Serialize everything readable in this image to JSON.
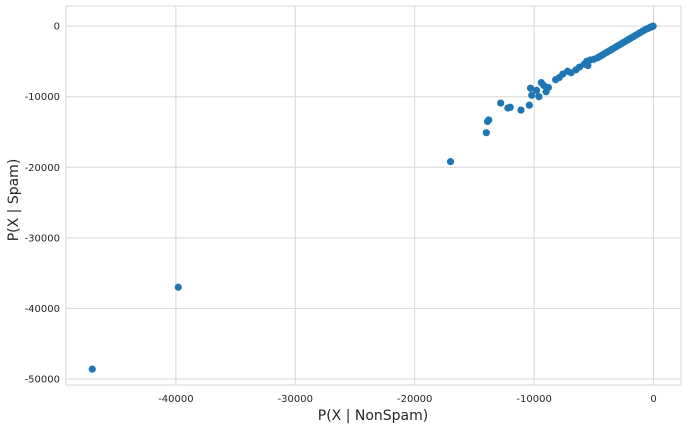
{
  "chart_data": {
    "type": "scatter",
    "title": "",
    "xlabel": "P(X | NonSpam)",
    "ylabel": "P(X | Spam)",
    "xlim": [
      -49200,
      2300
    ],
    "ylim": [
      -50850,
      2850
    ],
    "grid": true,
    "legend": "none",
    "colors": {
      "marker": "#1f77b4",
      "grid": "#d7d7d7",
      "background": "#ffffff",
      "text": "#262626"
    },
    "x_ticks": [
      {
        "value": -40000,
        "label": "-40000"
      },
      {
        "value": -30000,
        "label": "-30000"
      },
      {
        "value": -20000,
        "label": "-20000"
      },
      {
        "value": -10000,
        "label": "-10000"
      },
      {
        "value": 0,
        "label": "0"
      }
    ],
    "y_ticks": [
      {
        "value": 0,
        "label": "0"
      },
      {
        "value": -10000,
        "label": "-10000"
      },
      {
        "value": -20000,
        "label": "-20000"
      },
      {
        "value": -30000,
        "label": "-30000"
      },
      {
        "value": -40000,
        "label": "-40000"
      },
      {
        "value": -50000,
        "label": "-50000"
      }
    ],
    "series": [
      {
        "x": [
          -47000,
          -39800,
          -17000,
          -14000,
          -13900,
          -13800,
          -12800,
          -12200,
          -12000,
          -11100,
          -10400,
          -10300,
          -10200,
          -9800,
          -9600,
          -9400,
          -9200,
          -9000,
          -8800,
          -8200,
          -7900,
          -7600,
          -7200,
          -6900,
          -6500,
          -6200,
          -5800,
          -5600,
          -5500,
          -5300,
          -5000,
          -4700,
          -4500,
          -4300,
          -4100,
          -3900,
          -3700,
          -3500,
          -3300,
          -3100,
          -2900,
          -2700,
          -2500,
          -2300,
          -2100,
          -1900,
          -1700,
          -1500,
          -1300,
          -1100,
          -900,
          -700,
          -500,
          -350,
          -250,
          -150,
          -80,
          -30
        ],
        "y": [
          -48600,
          -37000,
          -19200,
          -15100,
          -13500,
          -13300,
          -10900,
          -11600,
          -11500,
          -11900,
          -11200,
          -8800,
          -9800,
          -9100,
          -10000,
          -8000,
          -8400,
          -9300,
          -8700,
          -7600,
          -7300,
          -6800,
          -6400,
          -6600,
          -6200,
          -5800,
          -5400,
          -5000,
          -5600,
          -4800,
          -4700,
          -4500,
          -4300,
          -4100,
          -3900,
          -3700,
          -3500,
          -3300,
          -3100,
          -2900,
          -2700,
          -2500,
          -2300,
          -2100,
          -1900,
          -1700,
          -1500,
          -1300,
          -1100,
          -900,
          -700,
          -500,
          -350,
          -250,
          -150,
          -80,
          -30,
          0
        ]
      }
    ]
  }
}
